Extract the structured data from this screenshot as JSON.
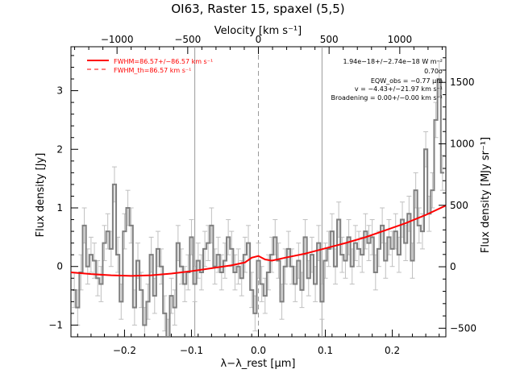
{
  "title": "OI63, Raster 15, spaxel (5,5)",
  "top_axis_label": "Velocity [km s⁻¹]",
  "annotations": {
    "flux": "1.94e−18+/−2.74e−18 W m⁻²",
    "sigma": "0.70σ",
    "eqw": "EQW_obs = −0.77 μm",
    "velocity": "v = −4.43+/−21.97 km s⁻¹",
    "broadening": "Broadening = 0.00+/−0.00 km s⁻¹"
  },
  "colors": {
    "fit": "#ff0000",
    "data": "#7f7f7f",
    "errorbar": "#c0c0c0",
    "vline": "#9a9a9a",
    "axis": "#000000"
  },
  "chart_data": {
    "type": "line",
    "title": "OI63, Raster 15, spaxel (5,5)",
    "xlabel": "λ−λ_rest [μm]",
    "ylabel": "Flux density [Jy]",
    "y2label": "Flux density [MJy sr⁻¹]",
    "x2label": "Velocity [km s⁻¹]",
    "xlim": [
      -0.28,
      0.28
    ],
    "ylim": [
      -1.2,
      3.75
    ],
    "x2lim": [
      -1326,
      1326
    ],
    "y2lim": [
      -570,
      1790
    ],
    "x_ticks": [
      -0.2,
      -0.1,
      0.0,
      0.1,
      0.2
    ],
    "x_tick_labels": [
      "−0.2",
      "−0.1",
      "0.0",
      "0.1",
      "0.2"
    ],
    "y_ticks": [
      -1,
      0,
      1,
      2,
      3
    ],
    "y_tick_labels": [
      "−1",
      "0",
      "1",
      "2",
      "3"
    ],
    "x2_ticks": [
      -1000,
      -500,
      0,
      500,
      1000
    ],
    "x2_tick_labels": [
      "−1000",
      "−500",
      "0",
      "500",
      "1000"
    ],
    "y2_ticks": [
      -500,
      0,
      500,
      1000,
      1500
    ],
    "y2_tick_labels": [
      "−500",
      "0",
      "500",
      "1000",
      "1500"
    ],
    "vertical_lines": [
      -0.095,
      0.0,
      0.095
    ],
    "legend": [
      {
        "label": "FWHM=86.57+/−86.57 km s⁻¹",
        "style": "solid"
      },
      {
        "label": "FWHM_th=86.57 km s⁻¹",
        "style": "dashed"
      }
    ],
    "legend_position": "top-left",
    "series": [
      {
        "label_shown": false,
        "style": "step",
        "x": [
          -0.275,
          -0.27,
          -0.265,
          -0.26,
          -0.255,
          -0.25,
          -0.245,
          -0.24,
          -0.235,
          -0.23,
          -0.225,
          -0.22,
          -0.215,
          -0.21,
          -0.205,
          -0.2,
          -0.195,
          -0.19,
          -0.185,
          -0.18,
          -0.175,
          -0.17,
          -0.165,
          -0.16,
          -0.155,
          -0.15,
          -0.145,
          -0.14,
          -0.135,
          -0.13,
          -0.125,
          -0.12,
          -0.115,
          -0.11,
          -0.105,
          -0.1,
          -0.095,
          -0.09,
          -0.085,
          -0.08,
          -0.075,
          -0.07,
          -0.065,
          -0.06,
          -0.055,
          -0.05,
          -0.045,
          -0.04,
          -0.035,
          -0.03,
          -0.025,
          -0.02,
          -0.015,
          -0.01,
          -0.005,
          0.0,
          0.005,
          0.01,
          0.015,
          0.02,
          0.025,
          0.03,
          0.035,
          0.04,
          0.045,
          0.05,
          0.055,
          0.06,
          0.065,
          0.07,
          0.075,
          0.08,
          0.085,
          0.09,
          0.095,
          0.1,
          0.105,
          0.11,
          0.115,
          0.12,
          0.125,
          0.13,
          0.135,
          0.14,
          0.145,
          0.15,
          0.155,
          0.16,
          0.165,
          0.17,
          0.175,
          0.18,
          0.185,
          0.19,
          0.195,
          0.2,
          0.205,
          0.21,
          0.215,
          0.22,
          0.225,
          0.23,
          0.235,
          0.24,
          0.245,
          0.25,
          0.255,
          0.26,
          0.265,
          0.27,
          0.275
        ],
        "values": [
          -0.4,
          -0.7,
          -0.1,
          0.7,
          0.0,
          0.2,
          0.1,
          -0.2,
          -0.3,
          0.4,
          0.6,
          0.3,
          1.4,
          0.2,
          -0.6,
          0.6,
          1.0,
          0.7,
          -0.7,
          0.1,
          -0.4,
          -1.0,
          -0.6,
          0.2,
          -0.5,
          0.3,
          0.0,
          -0.8,
          -1.2,
          -0.5,
          -0.7,
          0.4,
          0.0,
          -0.3,
          -0.1,
          0.5,
          -0.3,
          0.1,
          -0.1,
          0.3,
          0.4,
          0.7,
          0.0,
          0.2,
          -0.1,
          0.1,
          0.5,
          0.3,
          -0.1,
          0.0,
          -0.2,
          0.2,
          0.4,
          -0.4,
          -0.8,
          0.1,
          -0.3,
          -0.5,
          -0.1,
          0.2,
          0.5,
          0.1,
          -0.6,
          0.0,
          0.3,
          0.0,
          -0.3,
          0.1,
          -0.4,
          0.5,
          -0.2,
          0.2,
          -0.3,
          0.4,
          -0.6,
          0.1,
          0.3,
          0.6,
          0.0,
          0.8,
          0.2,
          0.1,
          0.5,
          0.0,
          0.4,
          0.3,
          0.2,
          0.6,
          0.4,
          0.5,
          -0.1,
          0.3,
          0.7,
          0.1,
          0.5,
          0.3,
          0.6,
          0.2,
          0.8,
          0.4,
          0.9,
          0.1,
          1.3,
          0.7,
          0.6,
          2.0,
          0.9,
          1.3,
          2.5,
          3.2,
          1.6
        ],
        "errors": [
          0.3,
          0.3,
          0.3,
          0.3,
          0.3,
          0.3,
          0.3,
          0.3,
          0.3,
          0.3,
          0.3,
          0.3,
          0.3,
          0.3,
          0.3,
          0.3,
          0.3,
          0.3,
          0.3,
          0.3,
          0.3,
          0.3,
          0.3,
          0.3,
          0.3,
          0.3,
          0.3,
          0.3,
          0.3,
          0.3,
          0.3,
          0.3,
          0.3,
          0.3,
          0.3,
          0.3,
          0.3,
          0.3,
          0.3,
          0.3,
          0.3,
          0.3,
          0.3,
          0.3,
          0.3,
          0.3,
          0.3,
          0.3,
          0.3,
          0.3,
          0.3,
          0.3,
          0.3,
          0.3,
          0.3,
          0.3,
          0.3,
          0.3,
          0.3,
          0.3,
          0.3,
          0.3,
          0.3,
          0.3,
          0.3,
          0.3,
          0.3,
          0.3,
          0.3,
          0.3,
          0.3,
          0.3,
          0.3,
          0.3,
          0.3,
          0.3,
          0.3,
          0.3,
          0.3,
          0.3,
          0.3,
          0.3,
          0.3,
          0.3,
          0.3,
          0.3,
          0.3,
          0.3,
          0.3,
          0.3,
          0.3,
          0.3,
          0.3,
          0.3,
          0.3,
          0.3,
          0.3,
          0.3,
          0.3,
          0.3,
          0.3,
          0.3,
          0.3,
          0.3,
          0.3,
          0.3,
          0.3,
          0.3,
          0.3,
          0.3,
          0.3
        ]
      },
      {
        "label_shown": true,
        "style": "fit",
        "x": [
          -0.28,
          -0.25,
          -0.22,
          -0.19,
          -0.16,
          -0.13,
          -0.1,
          -0.07,
          -0.04,
          -0.02,
          -0.01,
          0.0,
          0.01,
          0.02,
          0.04,
          0.07,
          0.1,
          0.13,
          0.16,
          0.19,
          0.22,
          0.25,
          0.28
        ],
        "values": [
          -0.1,
          -0.13,
          -0.15,
          -0.16,
          -0.15,
          -0.12,
          -0.08,
          -0.03,
          0.02,
          0.07,
          0.15,
          0.18,
          0.12,
          0.1,
          0.15,
          0.22,
          0.31,
          0.4,
          0.5,
          0.62,
          0.74,
          0.88,
          1.04
        ]
      }
    ]
  }
}
